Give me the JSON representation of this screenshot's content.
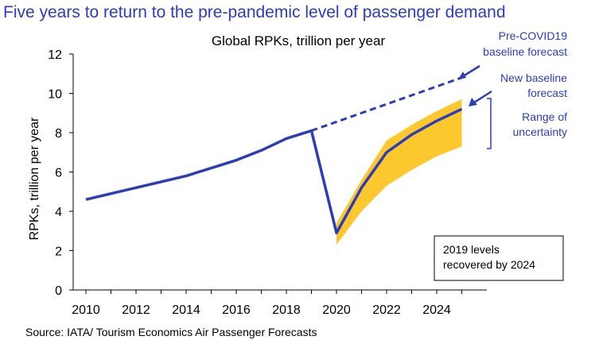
{
  "headline": "Five years to return to the pre-pandemic level of passenger demand",
  "source": "Source: IATA/ Tourism Economics Air Passenger Forecasts",
  "colors": {
    "accent": "#2b3eb8",
    "range": "#fcc82e",
    "axis": "#000000"
  },
  "chart_data": {
    "type": "line",
    "title": "Global RPKs, trillion per year",
    "xlabel": "",
    "ylabel": "RPKs, trillion per year",
    "xlim": [
      2010,
      2025
    ],
    "ylim": [
      0,
      12
    ],
    "xticks": [
      2010,
      2012,
      2014,
      2016,
      2018,
      2020,
      2022,
      2024
    ],
    "yticks": [
      0,
      2,
      4,
      6,
      8,
      10,
      12
    ],
    "grid": false,
    "series": [
      {
        "name": "",
        "style": "solid",
        "x": [
          2010,
          2011,
          2012,
          2013,
          2014,
          2015,
          2016,
          2017,
          2018,
          2019,
          2020,
          2021,
          2022,
          2023,
          2024,
          2025
        ],
        "y": [
          4.6,
          4.9,
          5.2,
          5.5,
          5.8,
          6.2,
          6.6,
          7.1,
          7.7,
          8.1,
          2.9,
          5.2,
          7.0,
          7.9,
          8.6,
          9.2
        ]
      },
      {
        "name": "Pre-COVID19 baseline forecast",
        "style": "dashed",
        "x": [
          2019,
          2025
        ],
        "y": [
          8.1,
          10.8
        ]
      }
    ],
    "range": {
      "name": "Range of uncertainty",
      "x": [
        2020,
        2021,
        2022,
        2023,
        2024,
        2025
      ],
      "upper": [
        3.4,
        5.6,
        7.6,
        8.4,
        9.1,
        9.7
      ],
      "lower": [
        2.3,
        4.0,
        5.3,
        6.1,
        6.8,
        7.3
      ]
    },
    "annotations": {
      "pre_covid": [
        "Pre-COVID19",
        "baseline forecast"
      ],
      "new_baseline": [
        "New baseline",
        "forecast"
      ],
      "range": [
        "Range of",
        "uncertainty"
      ],
      "box": [
        "2019 levels",
        "recovered by 2024"
      ]
    }
  }
}
